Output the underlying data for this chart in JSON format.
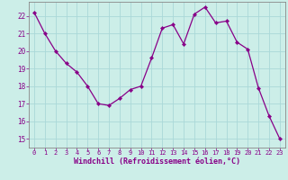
{
  "x": [
    0,
    1,
    2,
    3,
    4,
    5,
    6,
    7,
    8,
    9,
    10,
    11,
    12,
    13,
    14,
    15,
    16,
    17,
    18,
    19,
    20,
    21,
    22,
    23
  ],
  "y": [
    22.2,
    21.0,
    20.0,
    19.3,
    18.8,
    18.0,
    17.0,
    16.9,
    17.3,
    17.8,
    18.0,
    19.6,
    21.3,
    21.5,
    20.4,
    22.1,
    22.5,
    21.6,
    21.7,
    20.5,
    20.1,
    17.9,
    16.3,
    15.0
  ],
  "line_color": "#880088",
  "marker": "D",
  "marker_size": 2.2,
  "bg_color": "#cceee8",
  "grid_color": "#aad8d8",
  "ylim": [
    14.5,
    22.8
  ],
  "xlim": [
    -0.5,
    23.5
  ],
  "yticks": [
    15,
    16,
    17,
    18,
    19,
    20,
    21,
    22
  ],
  "xticks": [
    0,
    1,
    2,
    3,
    4,
    5,
    6,
    7,
    8,
    9,
    10,
    11,
    12,
    13,
    14,
    15,
    16,
    17,
    18,
    19,
    20,
    21,
    22,
    23
  ],
  "xlabel": "Windchill (Refroidissement éolien,°C)",
  "xlabel_color": "#880088",
  "tick_color": "#880088",
  "axis_color": "#888888",
  "tick_fontsize": 5.0,
  "ytick_fontsize": 5.5,
  "xlabel_fontsize": 6.0
}
